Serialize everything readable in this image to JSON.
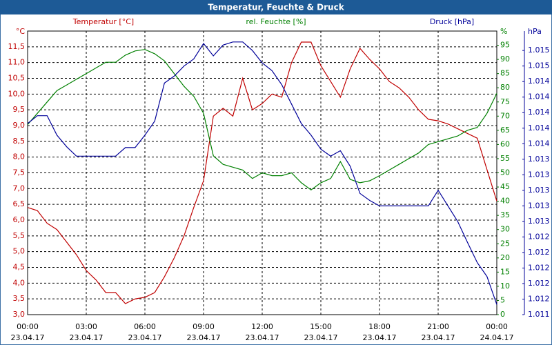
{
  "chart_data": {
    "type": "line",
    "title": "Temperatur, Feuchte & Druck",
    "y_unit": "°C",
    "y2_unit": "%",
    "y3_unit": "hPa",
    "x": [
      0,
      0.5,
      1,
      1.5,
      2,
      2.5,
      3,
      3.5,
      4,
      4.5,
      5,
      5.5,
      6,
      6.5,
      7,
      7.5,
      8,
      8.5,
      9,
      9.5,
      10,
      10.5,
      11,
      11.5,
      12,
      12.5,
      13,
      13.5,
      14,
      14.5,
      15,
      15.5,
      16,
      16.5,
      17,
      17.5,
      18,
      18.5,
      19,
      19.5,
      20,
      20.5,
      21,
      21.5,
      22,
      22.5,
      23,
      23.5,
      24
    ],
    "xlim": [
      0,
      24
    ],
    "xticks": [
      {
        "value": 0,
        "label": "00:00"
      },
      {
        "value": 3,
        "label": "03:00"
      },
      {
        "value": 6,
        "label": "06:00"
      },
      {
        "value": 9,
        "label": "09:00"
      },
      {
        "value": 12,
        "label": "12:00"
      },
      {
        "value": 15,
        "label": "15:00"
      },
      {
        "value": 18,
        "label": "18:00"
      },
      {
        "value": 21,
        "label": "21:00"
      },
      {
        "value": 24,
        "label": "00:00"
      }
    ],
    "xtick_dates": [
      "23.04.17",
      "23.04.17",
      "23.04.17",
      "23.04.17",
      "23.04.17",
      "23.04.17",
      "23.04.17",
      "23.04.17",
      "24.04.17"
    ],
    "ylim": [
      3.0,
      12.0
    ],
    "yticks": [
      {
        "value": 3.0,
        "label": "3,0"
      },
      {
        "value": 3.5,
        "label": "3,5"
      },
      {
        "value": 4.0,
        "label": "4,0"
      },
      {
        "value": 4.5,
        "label": "4,5"
      },
      {
        "value": 5.0,
        "label": "5,0"
      },
      {
        "value": 5.5,
        "label": "5,5"
      },
      {
        "value": 6.0,
        "label": "6,0"
      },
      {
        "value": 6.5,
        "label": "6,5"
      },
      {
        "value": 7.0,
        "label": "7,0"
      },
      {
        "value": 7.5,
        "label": "7,5"
      },
      {
        "value": 8.0,
        "label": "8,0"
      },
      {
        "value": 8.5,
        "label": "8,5"
      },
      {
        "value": 9.0,
        "label": "9,0"
      },
      {
        "value": 9.5,
        "label": "9,5"
      },
      {
        "value": 10.0,
        "label": "10,0"
      },
      {
        "value": 10.5,
        "label": "10,5"
      },
      {
        "value": 11.0,
        "label": "11,0"
      },
      {
        "value": 11.5,
        "label": "11,5"
      }
    ],
    "y2lim": [
      0,
      100
    ],
    "y2ticks": [
      0,
      5,
      10,
      15,
      20,
      25,
      30,
      35,
      40,
      45,
      50,
      55,
      60,
      65,
      70,
      75,
      80,
      85,
      90,
      95
    ],
    "y3lim": [
      1011.4,
      1015.05
    ],
    "y3ticks": [
      {
        "value": 1011.4,
        "label": "1.011"
      },
      {
        "value": 1011.6,
        "label": "1.012"
      },
      {
        "value": 1011.8,
        "label": "1.012"
      },
      {
        "value": 1012.0,
        "label": "1.012"
      },
      {
        "value": 1012.2,
        "label": "1.012"
      },
      {
        "value": 1012.4,
        "label": "1.012"
      },
      {
        "value": 1012.6,
        "label": "1.013"
      },
      {
        "value": 1012.8,
        "label": "1.013"
      },
      {
        "value": 1013.0,
        "label": "1.013"
      },
      {
        "value": 1013.2,
        "label": "1.013"
      },
      {
        "value": 1013.4,
        "label": "1.013"
      },
      {
        "value": 1013.6,
        "label": "1.014"
      },
      {
        "value": 1013.8,
        "label": "1.014"
      },
      {
        "value": 1014.0,
        "label": "1.014"
      },
      {
        "value": 1014.2,
        "label": "1.014"
      },
      {
        "value": 1014.4,
        "label": "1.014"
      },
      {
        "value": 1014.6,
        "label": "1.015"
      },
      {
        "value": 1014.8,
        "label": "1.015"
      }
    ],
    "grid": true,
    "series": [
      {
        "name": "Temperatur [°C]",
        "color": "#c00000",
        "axis": "y",
        "values": [
          6.4,
          6.3,
          5.9,
          5.7,
          5.3,
          4.9,
          4.4,
          4.1,
          3.7,
          3.7,
          3.35,
          3.5,
          3.55,
          3.7,
          4.2,
          4.8,
          5.5,
          6.4,
          7.25,
          9.3,
          9.55,
          9.3,
          10.5,
          9.5,
          9.7,
          10.0,
          9.9,
          11.0,
          11.65,
          11.65,
          10.9,
          10.4,
          9.9,
          10.8,
          11.45,
          11.1,
          10.8,
          10.4,
          10.2,
          9.9,
          9.5,
          9.2,
          9.15,
          9.05,
          8.9,
          8.75,
          8.6,
          7.6,
          6.6
        ]
      },
      {
        "name": "rel. Feuchte [%]",
        "color": "#008000",
        "axis": "y2",
        "values": [
          67,
          71,
          75,
          79,
          81,
          83,
          85,
          87,
          89,
          89,
          91.5,
          93,
          93.5,
          92,
          89.5,
          85,
          80.5,
          77,
          71,
          56,
          53,
          52,
          51,
          48,
          50,
          49,
          49,
          50,
          46.5,
          44,
          46.5,
          48,
          54,
          47.7,
          46.5,
          47.2,
          49,
          51,
          53,
          55,
          57,
          60,
          61,
          62,
          63,
          65,
          66,
          71,
          78
        ]
      },
      {
        "name": "Druck [hPa]",
        "color": "#000099",
        "axis": "y3",
        "values": [
          1013.86,
          1013.96,
          1013.96,
          1013.71,
          1013.56,
          1013.44,
          1013.44,
          1013.44,
          1013.44,
          1013.44,
          1013.55,
          1013.55,
          1013.71,
          1013.89,
          1014.38,
          1014.47,
          1014.6,
          1014.69,
          1014.89,
          1014.73,
          1014.87,
          1014.91,
          1014.91,
          1014.8,
          1014.64,
          1014.54,
          1014.36,
          1014.11,
          1013.86,
          1013.71,
          1013.53,
          1013.44,
          1013.51,
          1013.31,
          1012.96,
          1012.87,
          1012.8,
          1012.8,
          1012.8,
          1012.8,
          1012.8,
          1012.8,
          1013.0,
          1012.8,
          1012.6,
          1012.33,
          1012.07,
          1011.89,
          1011.53
        ]
      }
    ]
  }
}
